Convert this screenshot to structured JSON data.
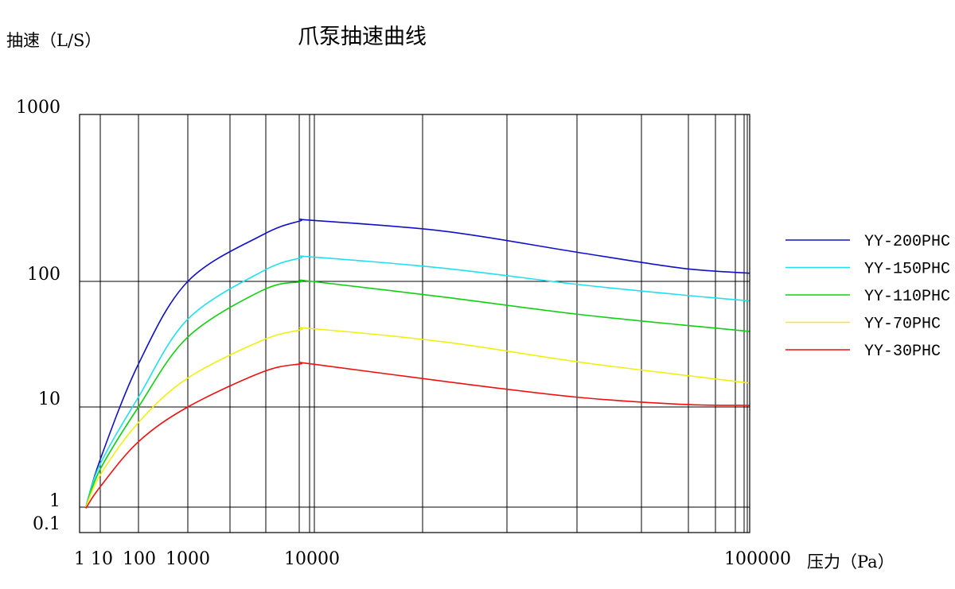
{
  "chart_data": {
    "type": "line",
    "title": "爪泵抽速曲线",
    "ylabel": "抽速（L/S）",
    "xlabel": "压力（Pa）",
    "x_tick_labels": [
      "1",
      "10",
      "100",
      "1000",
      "10000",
      "100000"
    ],
    "y_tick_labels": [
      "0.1",
      "1",
      "10",
      "100",
      "1000"
    ],
    "grid": true,
    "legend_position": "right",
    "series": [
      {
        "name": "YY-200PHC",
        "color": "#1010c8",
        "points": [
          [
            2,
            1
          ],
          [
            10,
            3
          ],
          [
            100,
            22
          ],
          [
            1000,
            100
          ],
          [
            4000,
            190
          ],
          [
            8000,
            230
          ],
          [
            10000,
            232
          ],
          [
            20000,
            200
          ],
          [
            40000,
            150
          ],
          [
            70000,
            120
          ],
          [
            100000,
            112
          ]
        ]
      },
      {
        "name": "YY-150PHC",
        "color": "#20e0f0",
        "points": [
          [
            2,
            1
          ],
          [
            10,
            2.7
          ],
          [
            100,
            12
          ],
          [
            1000,
            50
          ],
          [
            4000,
            115
          ],
          [
            8000,
            138
          ],
          [
            10000,
            140
          ],
          [
            20000,
            120
          ],
          [
            40000,
            95
          ],
          [
            70000,
            78
          ],
          [
            100000,
            70
          ]
        ]
      },
      {
        "name": "YY-110PHC",
        "color": "#10d010",
        "points": [
          [
            2,
            1
          ],
          [
            10,
            2.4
          ],
          [
            100,
            10
          ],
          [
            1000,
            36
          ],
          [
            4000,
            85
          ],
          [
            8000,
            99
          ],
          [
            10000,
            100
          ],
          [
            20000,
            75
          ],
          [
            40000,
            55
          ],
          [
            70000,
            45
          ],
          [
            100000,
            40
          ]
        ]
      },
      {
        "name": "YY-70PHC",
        "color": "#f0f010",
        "points": [
          [
            2,
            1
          ],
          [
            10,
            2.1
          ],
          [
            100,
            7
          ],
          [
            1000,
            17
          ],
          [
            4000,
            34
          ],
          [
            8000,
            41
          ],
          [
            10000,
            42
          ],
          [
            20000,
            33
          ],
          [
            40000,
            23
          ],
          [
            70000,
            18
          ],
          [
            100000,
            15.5
          ]
        ]
      },
      {
        "name": "YY-30PHC",
        "color": "#f01010",
        "points": [
          [
            2,
            0.9
          ],
          [
            10,
            1.6
          ],
          [
            100,
            4.5
          ],
          [
            1000,
            10
          ],
          [
            4000,
            19
          ],
          [
            8000,
            22
          ],
          [
            10000,
            22
          ],
          [
            20000,
            16
          ],
          [
            40000,
            12
          ],
          [
            70000,
            10.5
          ],
          [
            100000,
            10.3
          ]
        ]
      }
    ]
  }
}
